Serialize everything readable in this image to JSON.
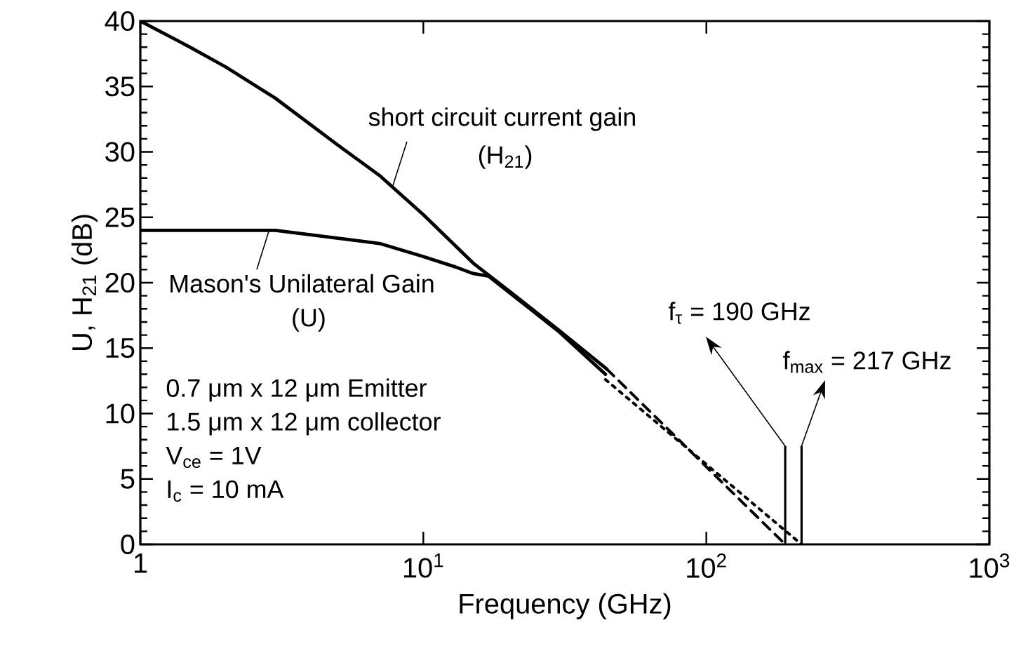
{
  "chart_data": {
    "type": "line",
    "xlabel": "Frequency (GHz)",
    "ylabel": "U, H$_{21}$ (dB)",
    "log": "x",
    "marker": "none",
    "xlim": [
      1,
      1000
    ],
    "xticks": [
      1,
      {
        "value": 10,
        "label": "10$^{1}$"
      },
      {
        "value": 100,
        "label": "10$^{2}$"
      },
      {
        "value": 1000,
        "label": "10$^{3}$"
      }
    ],
    "ylim": [
      0,
      40
    ],
    "yticks": [
      0,
      5,
      10,
      15,
      20,
      25,
      30,
      35,
      40
    ],
    "series": [
      {
        "color": "#000000",
        "line_style": "solid",
        "x": [
          1,
          1.5,
          2,
          3,
          5,
          7,
          10,
          15,
          20,
          30,
          44.5
        ],
        "values": [
          40,
          38.0,
          36.5,
          34.1,
          30.5,
          28.2,
          25.2,
          21.5,
          19.4,
          16.4,
          13.4
        ]
      },
      {
        "color": "#000000",
        "line_style": "solid",
        "x": [
          1,
          2,
          3,
          5,
          7,
          10,
          13,
          15,
          17,
          20,
          30,
          44
        ],
        "values": [
          24.0,
          24.0,
          24.0,
          23.4,
          23.0,
          22.0,
          21.2,
          20.7,
          20.5,
          19.3,
          16.3,
          13.0
        ]
      },
      {
        "color": "#000000",
        "line_style": "dashed",
        "x": [
          44.5,
          190
        ],
        "values": [
          13.4,
          0
        ]
      },
      {
        "color": "#000000",
        "line_style": "dotted",
        "x": [
          44,
          217
        ],
        "values": [
          12.6,
          0
        ]
      }
    ],
    "annotations": [
      {
        "text": "short circuit current gain",
        "x": 7.8,
        "y": 27.4
      },
      "(H$_{21}$)",
      {
        "text": "Mason's Unilateral Gain",
        "x": 2.85,
        "y": 24.0
      },
      "(U)",
      "0.7 μm x 12 μm Emitter",
      "1.5 μm x 12 μm collector",
      "V$_{ce}$ = 1V",
      "I$_{c}$ = 10 mA",
      {
        "text": "f$_{τ}$ = 190 GHz",
        "x": 190,
        "y": 0
      },
      {
        "text": "f$_{max}$ = 217 GHz",
        "x": 217,
        "y": 0
      }
    ]
  }
}
